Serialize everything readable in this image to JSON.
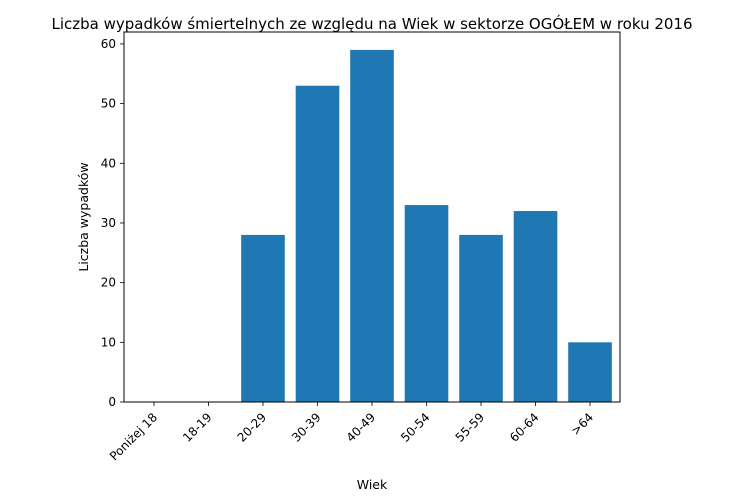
{
  "chart_data": {
    "type": "bar",
    "title": "Liczba wypadków śmiertelnych ze względu na Wiek w sektorze OGÓŁEM   w roku 2016",
    "xlabel": "Wiek",
    "ylabel": "Liczba wypadków",
    "categories": [
      "Poniżej 18",
      "18-19",
      "20-29",
      "30-39",
      "40-49",
      "50-54",
      "55-59",
      "60-64",
      ">64"
    ],
    "values": [
      0,
      0,
      28,
      53,
      59,
      33,
      28,
      32,
      10
    ],
    "ylim": [
      0,
      62
    ],
    "yticks": [
      0,
      10,
      20,
      30,
      40,
      50,
      60
    ],
    "grid": false,
    "bar_color": "#1f77b4"
  }
}
